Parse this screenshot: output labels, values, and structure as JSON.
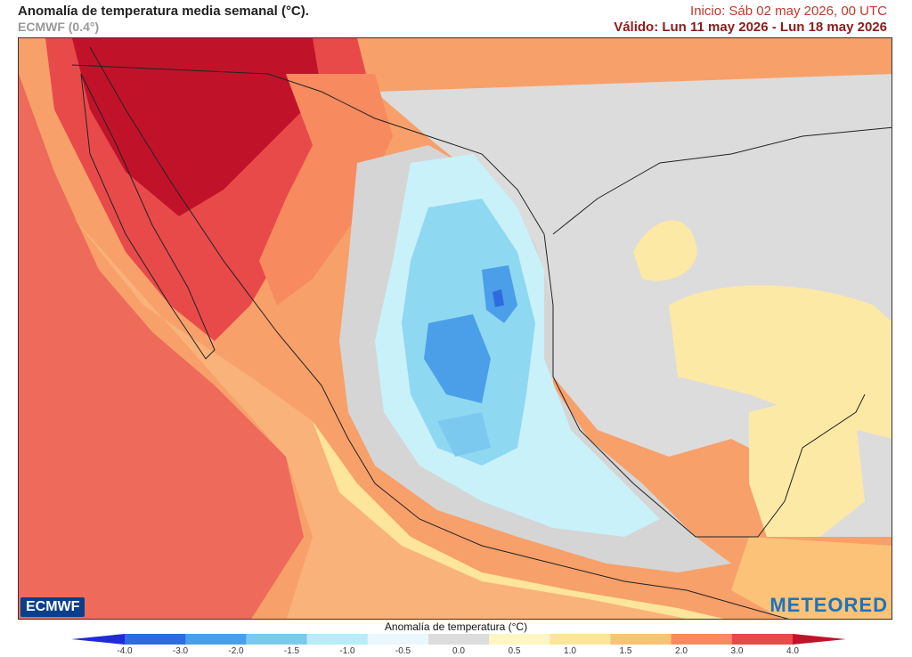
{
  "header": {
    "title": "Anomalía de temperatura media semanal (°C).",
    "model": "ECMWF (0.4°)",
    "run": "Inicio: Sáb 02 may 2026, 00 UTC",
    "valid": "Válido: Lun 11 may 2026 - Lun 18 may 2026"
  },
  "logos": {
    "left": "ECMWF",
    "right": "METEORED"
  },
  "legend": {
    "title": "Anomalía de temperatura (°C)",
    "ticks": [
      "-4.0",
      "-3.0",
      "-2.0",
      "-1.5",
      "-1.0",
      "-0.5",
      "0.0",
      "0.5",
      "1.0",
      "1.5",
      "2.0",
      "3.0",
      "4.0"
    ],
    "colors": [
      "#1f2bd6",
      "#2e6be0",
      "#4a9fe8",
      "#7cc9f0",
      "#b7ecfa",
      "#e8f8fc",
      "#dcdcdc",
      "#fff6c4",
      "#fde59b",
      "#fcc278",
      "#f78a5e",
      "#e84a4a",
      "#c0132a"
    ]
  }
}
